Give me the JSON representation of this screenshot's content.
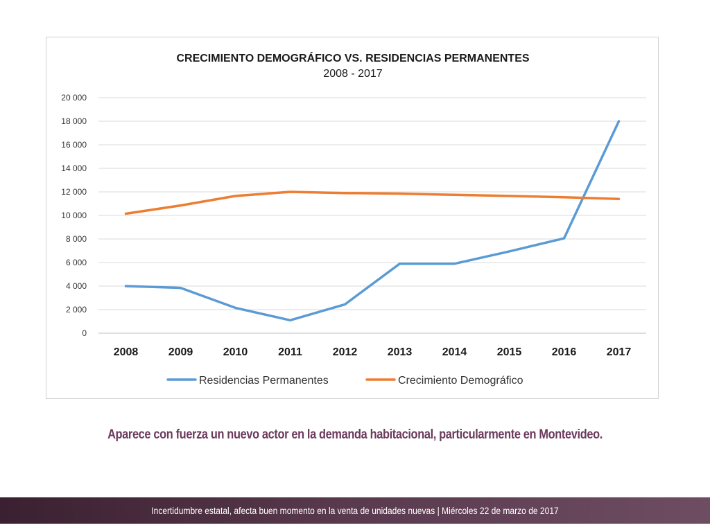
{
  "chart_data": {
    "type": "line",
    "title": "CRECIMIENTO DEMOGRÁFICO VS. RESIDENCIAS PERMANENTES",
    "subtitle": "2008 - 2017",
    "categories": [
      "2008",
      "2009",
      "2010",
      "2011",
      "2012",
      "2013",
      "2014",
      "2015",
      "2016",
      "2017"
    ],
    "y_ticks": [
      "0",
      "2 000",
      "4 000",
      "6 000",
      "8 000",
      "10 000",
      "12 000",
      "14 000",
      "16 000",
      "18 000",
      "20 000"
    ],
    "ylim": [
      0,
      20000
    ],
    "grid": true,
    "legend_position": "bottom",
    "series": [
      {
        "name": "Residencias Permanentes",
        "color": "#5b9bd5",
        "values": [
          4000,
          3850,
          2150,
          1100,
          2450,
          5900,
          5900,
          6950,
          8050,
          18000
        ]
      },
      {
        "name": "Crecimiento Demográfico",
        "color": "#ed7d31",
        "values": [
          10150,
          10850,
          11650,
          12000,
          11900,
          11850,
          11750,
          11650,
          11550,
          11400
        ]
      }
    ]
  },
  "caption": {
    "text": "Aparece con fuerza un nuevo actor en la demanda habitacional, particularmente en Montevideo.",
    "color": "#6b3a5c"
  },
  "footer": {
    "text": "Incertidumbre estatal, afecta buen momento en la venta de unidades nuevas | Miércoles 22 de marzo de 2017"
  }
}
